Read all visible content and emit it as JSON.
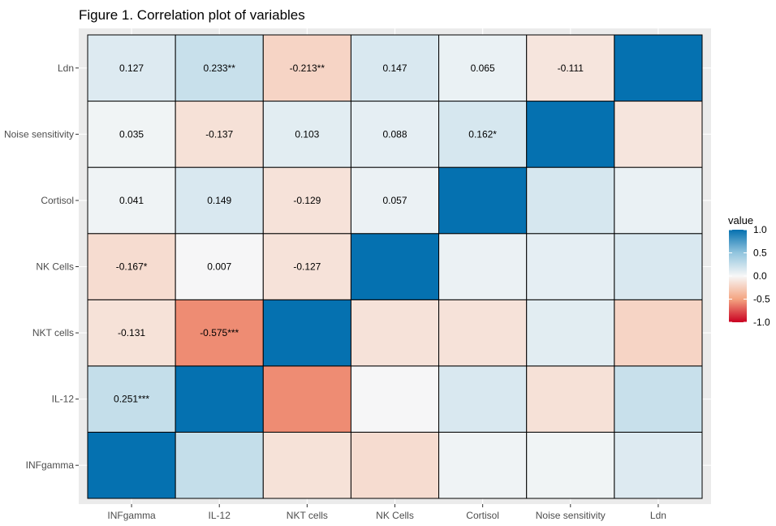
{
  "chart_data": {
    "type": "heatmap",
    "title": "Figure 1. Correlation plot of variables",
    "xlabel": "",
    "ylabel": "",
    "x_categories": [
      "INFgamma",
      "IL-12",
      "NKT cells",
      "NK Cells",
      "Cortisol",
      "Noise sensitivity",
      "Ldn"
    ],
    "y_categories": [
      "INFgamma",
      "IL-12",
      "NKT cells",
      "NK Cells",
      "Cortisol",
      "Noise sensitivity",
      "Ldn"
    ],
    "values": [
      [
        1.0,
        0.251,
        -0.131,
        -0.167,
        0.041,
        0.035,
        0.127
      ],
      [
        0.251,
        1.0,
        -0.575,
        0.007,
        0.149,
        -0.137,
        0.233
      ],
      [
        -0.131,
        -0.575,
        1.0,
        -0.127,
        -0.129,
        0.103,
        -0.213
      ],
      [
        -0.167,
        0.007,
        -0.127,
        1.0,
        0.057,
        0.088,
        0.147
      ],
      [
        0.041,
        0.149,
        -0.129,
        0.057,
        1.0,
        0.162,
        0.065
      ],
      [
        0.035,
        -0.137,
        0.103,
        0.088,
        0.162,
        1.0,
        -0.111
      ],
      [
        0.127,
        0.233,
        -0.213,
        0.147,
        0.065,
        -0.111,
        1.0
      ]
    ],
    "labels": [
      {
        "x": "INFgamma",
        "y": "IL-12",
        "text": "0.251***"
      },
      {
        "x": "INFgamma",
        "y": "NKT cells",
        "text": "-0.131"
      },
      {
        "x": "INFgamma",
        "y": "NK Cells",
        "text": "-0.167*"
      },
      {
        "x": "INFgamma",
        "y": "Cortisol",
        "text": "0.041"
      },
      {
        "x": "INFgamma",
        "y": "Noise sensitivity",
        "text": "0.035"
      },
      {
        "x": "INFgamma",
        "y": "Ldn",
        "text": "0.127"
      },
      {
        "x": "IL-12",
        "y": "NKT cells",
        "text": "-0.575***"
      },
      {
        "x": "IL-12",
        "y": "NK Cells",
        "text": "0.007"
      },
      {
        "x": "IL-12",
        "y": "Cortisol",
        "text": "0.149"
      },
      {
        "x": "IL-12",
        "y": "Noise sensitivity",
        "text": "-0.137"
      },
      {
        "x": "IL-12",
        "y": "Ldn",
        "text": "0.233**"
      },
      {
        "x": "NKT cells",
        "y": "NK Cells",
        "text": "-0.127"
      },
      {
        "x": "NKT cells",
        "y": "Cortisol",
        "text": "-0.129"
      },
      {
        "x": "NKT cells",
        "y": "Noise sensitivity",
        "text": "0.103"
      },
      {
        "x": "NKT cells",
        "y": "Ldn",
        "text": "-0.213**"
      },
      {
        "x": "NK Cells",
        "y": "Cortisol",
        "text": "0.057"
      },
      {
        "x": "NK Cells",
        "y": "Noise sensitivity",
        "text": "0.088"
      },
      {
        "x": "NK Cells",
        "y": "Ldn",
        "text": "0.147"
      },
      {
        "x": "Cortisol",
        "y": "Noise sensitivity",
        "text": "0.162*"
      },
      {
        "x": "Cortisol",
        "y": "Ldn",
        "text": "0.065"
      },
      {
        "x": "Noise sensitivity",
        "y": "Ldn",
        "text": "-0.111"
      }
    ],
    "color_scale": {
      "low": "#CA0020",
      "mid": "#F7F7F7",
      "high": "#0571B0",
      "limits": [
        -1,
        1
      ]
    },
    "legend": {
      "title": "value",
      "position": "right",
      "ticks": [
        1.0,
        0.5,
        0.0,
        -0.5,
        -1.0
      ],
      "tick_labels": [
        "1.0",
        "0.5",
        "0.0",
        "-0.5",
        "-1.0"
      ]
    },
    "panel_background": "#EBEBEB",
    "grid": true
  }
}
